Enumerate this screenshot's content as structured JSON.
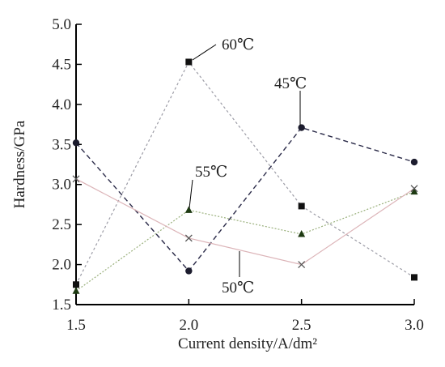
{
  "chart_data": {
    "type": "line",
    "title": "",
    "xlabel": "Current density/A/dm²",
    "ylabel": "Hardness/GPa",
    "xlim": [
      1.5,
      3.0
    ],
    "ylim": [
      1.5,
      5.0
    ],
    "x_ticks": [
      "1.5",
      "2.0",
      "2.5",
      "3.0"
    ],
    "y_ticks": [
      "1.5",
      "2.0",
      "2.5",
      "3.0",
      "3.5",
      "4.0",
      "4.5",
      "5.0"
    ],
    "grid": false,
    "x": [
      1.5,
      2.0,
      2.5,
      3.0
    ],
    "series": [
      {
        "name": "45℃",
        "values": [
          3.52,
          1.92,
          3.71,
          3.28
        ],
        "color": "#2a2a48",
        "marker": "circle",
        "dash": "6,4"
      },
      {
        "name": "60℃",
        "values": [
          1.75,
          4.53,
          2.73,
          1.84
        ],
        "color": "#9c9ca6",
        "marker": "square",
        "dash": "3,3"
      },
      {
        "name": "55℃",
        "values": [
          1.67,
          2.68,
          2.38,
          2.91
        ],
        "color": "#9ab07c",
        "marker": "triangle",
        "dash": "2,2"
      },
      {
        "name": "50℃",
        "values": [
          3.07,
          2.33,
          2.0,
          2.95
        ],
        "color": "#dcb4b8",
        "marker": "cross",
        "dash": ""
      }
    ]
  }
}
